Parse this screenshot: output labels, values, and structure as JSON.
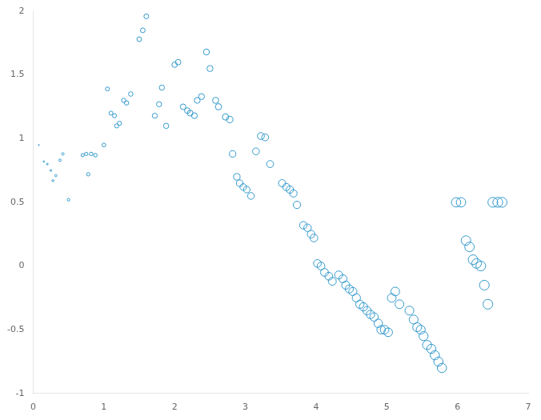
{
  "chart_data": {
    "type": "scatter",
    "x": [
      0.08,
      0.15,
      0.2,
      0.25,
      0.28,
      0.32,
      0.38,
      0.42,
      0.5,
      0.7,
      0.75,
      0.78,
      0.82,
      0.88,
      1.0,
      1.05,
      1.1,
      1.15,
      1.18,
      1.22,
      1.28,
      1.32,
      1.38,
      1.5,
      1.55,
      1.6,
      1.72,
      1.78,
      1.82,
      1.88,
      2.0,
      2.05,
      2.12,
      2.18,
      2.22,
      2.28,
      2.32,
      2.38,
      2.45,
      2.5,
      2.58,
      2.62,
      2.72,
      2.78,
      2.82,
      2.88,
      2.92,
      2.97,
      3.02,
      3.08,
      3.15,
      3.22,
      3.28,
      3.35,
      3.52,
      3.58,
      3.63,
      3.68,
      3.73,
      3.82,
      3.88,
      3.93,
      3.97,
      4.02,
      4.07,
      4.12,
      4.18,
      4.23,
      4.32,
      4.38,
      4.42,
      4.47,
      4.52,
      4.57,
      4.62,
      4.67,
      4.72,
      4.77,
      4.82,
      4.88,
      4.92,
      4.97,
      5.02,
      5.07,
      5.12,
      5.18,
      5.32,
      5.38,
      5.43,
      5.48,
      5.52,
      5.57,
      5.63,
      5.68,
      5.73,
      5.78,
      5.98,
      6.05,
      6.12,
      6.17,
      6.22,
      6.27,
      6.33,
      6.38,
      6.43,
      6.5,
      6.57,
      6.63
    ],
    "values": [
      0.95,
      0.82,
      0.8,
      0.75,
      0.67,
      0.71,
      0.83,
      0.88,
      0.52,
      0.87,
      0.88,
      0.72,
      0.88,
      0.87,
      0.95,
      1.39,
      1.2,
      1.18,
      1.1,
      1.12,
      1.3,
      1.28,
      1.35,
      1.78,
      1.85,
      1.96,
      1.18,
      1.27,
      1.4,
      1.1,
      1.58,
      1.6,
      1.25,
      1.22,
      1.2,
      1.18,
      1.3,
      1.33,
      1.68,
      1.55,
      1.3,
      1.25,
      1.17,
      1.15,
      0.88,
      0.7,
      0.65,
      0.62,
      0.6,
      0.55,
      0.9,
      1.02,
      1.01,
      0.8,
      0.65,
      0.62,
      0.6,
      0.57,
      0.48,
      0.32,
      0.3,
      0.25,
      0.22,
      0.02,
      0.0,
      -0.05,
      -0.08,
      -0.12,
      -0.07,
      -0.1,
      -0.15,
      -0.18,
      -0.2,
      -0.25,
      -0.3,
      -0.32,
      -0.35,
      -0.38,
      -0.4,
      -0.45,
      -0.5,
      -0.5,
      -0.52,
      -0.25,
      -0.2,
      -0.3,
      -0.35,
      -0.42,
      -0.48,
      -0.5,
      -0.55,
      -0.62,
      -0.65,
      -0.7,
      -0.75,
      -0.8,
      0.5,
      0.5,
      0.2,
      0.15,
      0.05,
      0.02,
      0.0,
      -0.15,
      -0.3,
      0.5,
      0.5,
      0.5
    ],
    "sizes": [
      0.96,
      1.8,
      2.4,
      3,
      3.36,
      3.84,
      4.56,
      5.04,
      6,
      8.4,
      9,
      9.36,
      9.84,
      10.56,
      12,
      12.6,
      13.2,
      13.8,
      14.16,
      14.64,
      15.36,
      15.84,
      16.56,
      18,
      18.6,
      19.2,
      20.64,
      21.36,
      21.84,
      22.56,
      24,
      24.6,
      25.44,
      26.16,
      26.64,
      27.36,
      27.84,
      28.56,
      29.4,
      30,
      30.96,
      31.44,
      32.64,
      33.36,
      33.84,
      34.56,
      35.04,
      35.64,
      36.24,
      36.96,
      37.8,
      38.64,
      39.36,
      40.2,
      42.24,
      42.96,
      43.56,
      44.16,
      44.76,
      45.84,
      46.56,
      47.16,
      47.64,
      48.24,
      48.84,
      49.44,
      50.16,
      50.76,
      51.84,
      52.56,
      53.04,
      53.64,
      54.24,
      54.84,
      55.44,
      56.04,
      56.64,
      57.24,
      57.84,
      58.56,
      59.04,
      59.64,
      60.24,
      60.84,
      61.44,
      62.16,
      63.84,
      64.56,
      65.16,
      65.76,
      66.24,
      66.84,
      67.56,
      68.16,
      68.76,
      69.36,
      71.76,
      72.6,
      73.44,
      74.04,
      74.64,
      75.24,
      75.96,
      76.56,
      77.16,
      78,
      78.84,
      79.56
    ],
    "color": "#3399CC",
    "marker": "circle",
    "xlim": [
      0,
      7
    ],
    "ylim": [
      -1,
      2
    ],
    "xticks": [
      0,
      1,
      2,
      3,
      4,
      5,
      6,
      7
    ],
    "yticks": [
      -1,
      -0.5,
      0,
      0.5,
      1,
      1.5,
      2
    ],
    "grid": false
  }
}
